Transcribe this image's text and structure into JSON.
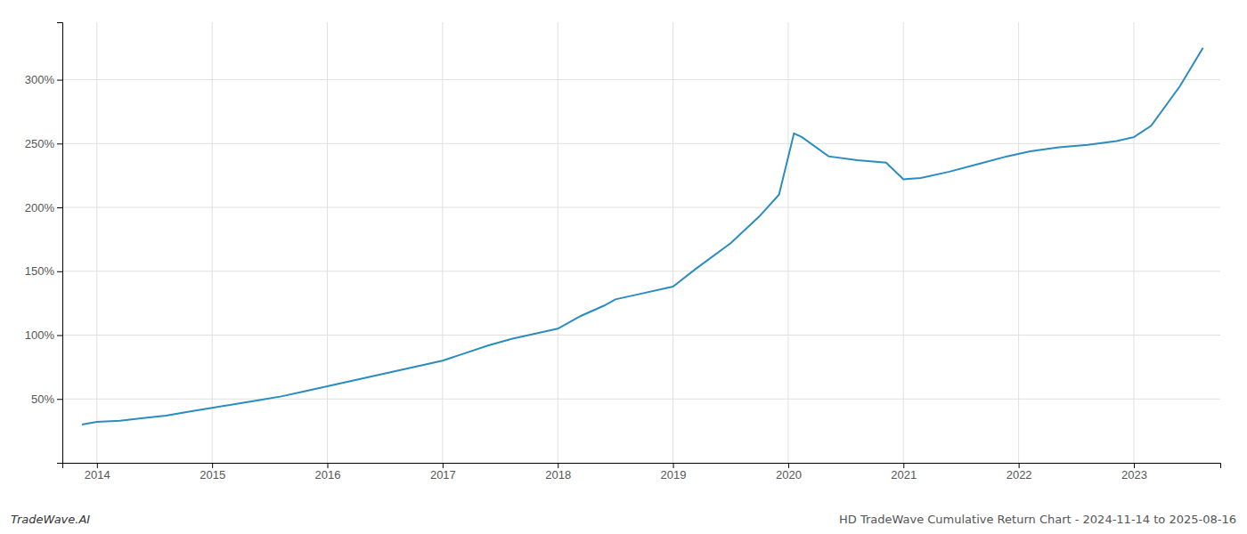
{
  "chart_data": {
    "type": "line",
    "title": "HD TradeWave Cumulative Return Chart - 2024-11-14 to 2025-08-16",
    "annotations": [
      {
        "text": "TradeWave.AI"
      }
    ],
    "color": "#2b8cbf",
    "grid": true,
    "x": [
      2013.87,
      2014.0,
      2014.2,
      2014.4,
      2014.6,
      2014.8,
      2015.0,
      2015.2,
      2015.4,
      2015.6,
      2015.8,
      2016.0,
      2016.2,
      2016.4,
      2016.6,
      2016.8,
      2017.0,
      2017.2,
      2017.4,
      2017.6,
      2017.8,
      2018.0,
      2018.2,
      2018.4,
      2018.5,
      2018.7,
      2019.0,
      2019.2,
      2019.5,
      2019.75,
      2019.92,
      2020.05,
      2020.12,
      2020.35,
      2020.6,
      2020.85,
      2021.0,
      2021.15,
      2021.4,
      2021.65,
      2021.9,
      2022.1,
      2022.35,
      2022.6,
      2022.85,
      2023.0,
      2023.15,
      2023.4,
      2023.6
    ],
    "values": [
      30,
      32,
      33,
      35,
      37,
      40,
      43,
      46,
      49,
      52,
      56,
      60,
      64,
      68,
      72,
      76,
      80,
      86,
      92,
      97,
      101,
      105,
      115,
      123,
      128,
      132,
      138,
      152,
      172,
      193,
      210,
      258,
      255,
      240,
      237,
      235,
      222,
      223,
      228,
      234,
      240,
      244,
      247,
      249,
      252,
      255,
      264,
      295,
      325
    ],
    "xlim": [
      2013.7,
      2023.75
    ],
    "ylim": [
      0,
      345
    ],
    "xticks": [
      2014,
      2015,
      2016,
      2017,
      2018,
      2019,
      2020,
      2021,
      2022,
      2023
    ],
    "yticks": [
      {
        "value": 50,
        "label": "50%"
      },
      {
        "value": 100,
        "label": "100%"
      },
      {
        "value": 150,
        "label": "150%"
      },
      {
        "value": 200,
        "label": "200%"
      },
      {
        "value": 250,
        "label": "250%"
      },
      {
        "value": 300,
        "label": "300%"
      }
    ]
  }
}
